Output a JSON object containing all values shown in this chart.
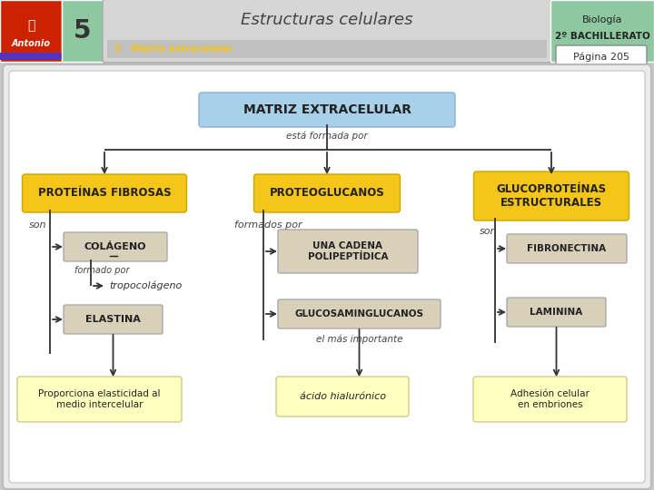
{
  "title": "Estructuras celulares",
  "subtitle_num": "2",
  "subtitle_text": "Matriz extracelular",
  "subject": "Biología",
  "level": "2º BACHILLERATO",
  "page": "Página 205",
  "chapter": "5",
  "header_green": "#8dc8a0",
  "box_blue": "#a8d0e8",
  "box_yellow": "#f5c518",
  "box_beige": "#d8d0b8",
  "box_lightyellow": "#ffffc0",
  "arrow_color": "#333333",
  "bg_outer": "#c8c8c8",
  "bg_content": "#f0f0f0",
  "main_node": "MATRIZ EXTRACELULAR",
  "main_node_label": "está formada por",
  "col1_title": "PROTEÍNAS FIBROSAS",
  "col2_title": "PROTEOGLUCANOS",
  "col3_title": "GLUCOPROTEÍNAS\nESTRUCTURALES",
  "col1_sub_label": "son",
  "col2_sub_label": "formados por",
  "col3_sub_label": "son",
  "col1_item1": "COLÁGENO",
  "col1_sub_label2": "formado por",
  "col1_sub_item": "tropocolágeno",
  "col1_item2": "ELASTINA",
  "col1_bottom": "Proporciona elasticidad al\nmedio intercelular",
  "col2_item1": "UNA CADENA\nPOLIPEPTÍDICA",
  "col2_item2": "GLUCOSAMINGLUCANOS",
  "col2_sub_label2": "el más importante",
  "col2_bottom": "ácido hialurónico",
  "col3_item1": "FIBRONECTINA",
  "col3_item2": "LAMININA",
  "col3_bottom": "Adhesión celular\nen embriones"
}
